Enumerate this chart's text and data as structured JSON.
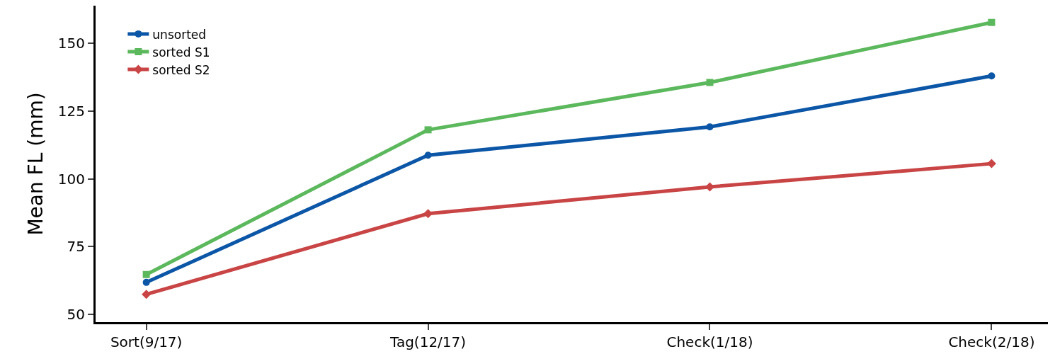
{
  "chart_data": {
    "type": "line",
    "ylabel": "Mean FL (mm)",
    "categories": [
      "Sort(9/17)",
      "Tag(12/17)",
      "Check(1/18)",
      "Check(2/18)"
    ],
    "series": [
      {
        "name": "unsorted",
        "color": "#0b56a6",
        "marker": "circle",
        "values": [
          61.7,
          108.7,
          119.2,
          138.0
        ]
      },
      {
        "name": "sorted S1",
        "color": "#5cb85c",
        "marker": "square",
        "values": [
          64.6,
          118.1,
          135.6,
          157.8
        ]
      },
      {
        "name": "sorted S2",
        "color": "#c94444",
        "marker": "diamond",
        "values": [
          57.3,
          87.1,
          97.0,
          105.6
        ]
      }
    ],
    "ylim": [
      47,
      164
    ],
    "yticks": [
      50,
      75,
      100,
      125,
      150
    ],
    "grid": false,
    "legend": "top left",
    "line_style": "solid"
  }
}
